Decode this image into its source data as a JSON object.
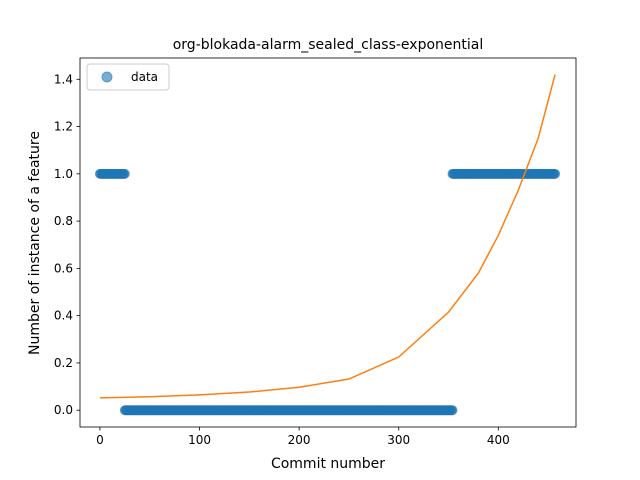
{
  "chart_data": {
    "type": "scatter",
    "title": "org-blokada-alarm_sealed_class-exponential",
    "xlabel": "Commit number",
    "ylabel": "Number of instance of a feature",
    "xlim": [
      -20,
      478
    ],
    "ylim": [
      -0.071,
      1.49
    ],
    "xticks": [
      0,
      100,
      200,
      300,
      400
    ],
    "yticks": [
      0.0,
      0.2,
      0.4,
      0.6,
      0.8,
      1.0,
      1.2,
      1.4
    ],
    "xtick_labels": [
      "0",
      "100",
      "200",
      "300",
      "400"
    ],
    "ytick_labels": [
      "0.0",
      "0.2",
      "0.4",
      "0.6",
      "0.8",
      "1.0",
      "1.2",
      "1.4"
    ],
    "grid": false,
    "legend": {
      "position": "top-left",
      "entries": [
        "data"
      ]
    },
    "series": [
      {
        "name": "data",
        "kind": "scatter",
        "color": "#1f77b4",
        "segments": [
          {
            "x_start": 0,
            "x_end": 25,
            "y": 1.0
          },
          {
            "x_start": 25,
            "x_end": 354,
            "y": 0.0
          },
          {
            "x_start": 354,
            "x_end": 457,
            "y": 1.0
          }
        ]
      },
      {
        "kind": "line",
        "color": "#ff7f0e",
        "function": "exponential",
        "points": [
          [
            0,
            0.052
          ],
          [
            50,
            0.057
          ],
          [
            100,
            0.065
          ],
          [
            150,
            0.077
          ],
          [
            200,
            0.097
          ],
          [
            250,
            0.132
          ],
          [
            300,
            0.225
          ],
          [
            350,
            0.415
          ],
          [
            380,
            0.58
          ],
          [
            400,
            0.74
          ],
          [
            420,
            0.93
          ],
          [
            440,
            1.15
          ],
          [
            457,
            1.42
          ]
        ]
      }
    ]
  }
}
